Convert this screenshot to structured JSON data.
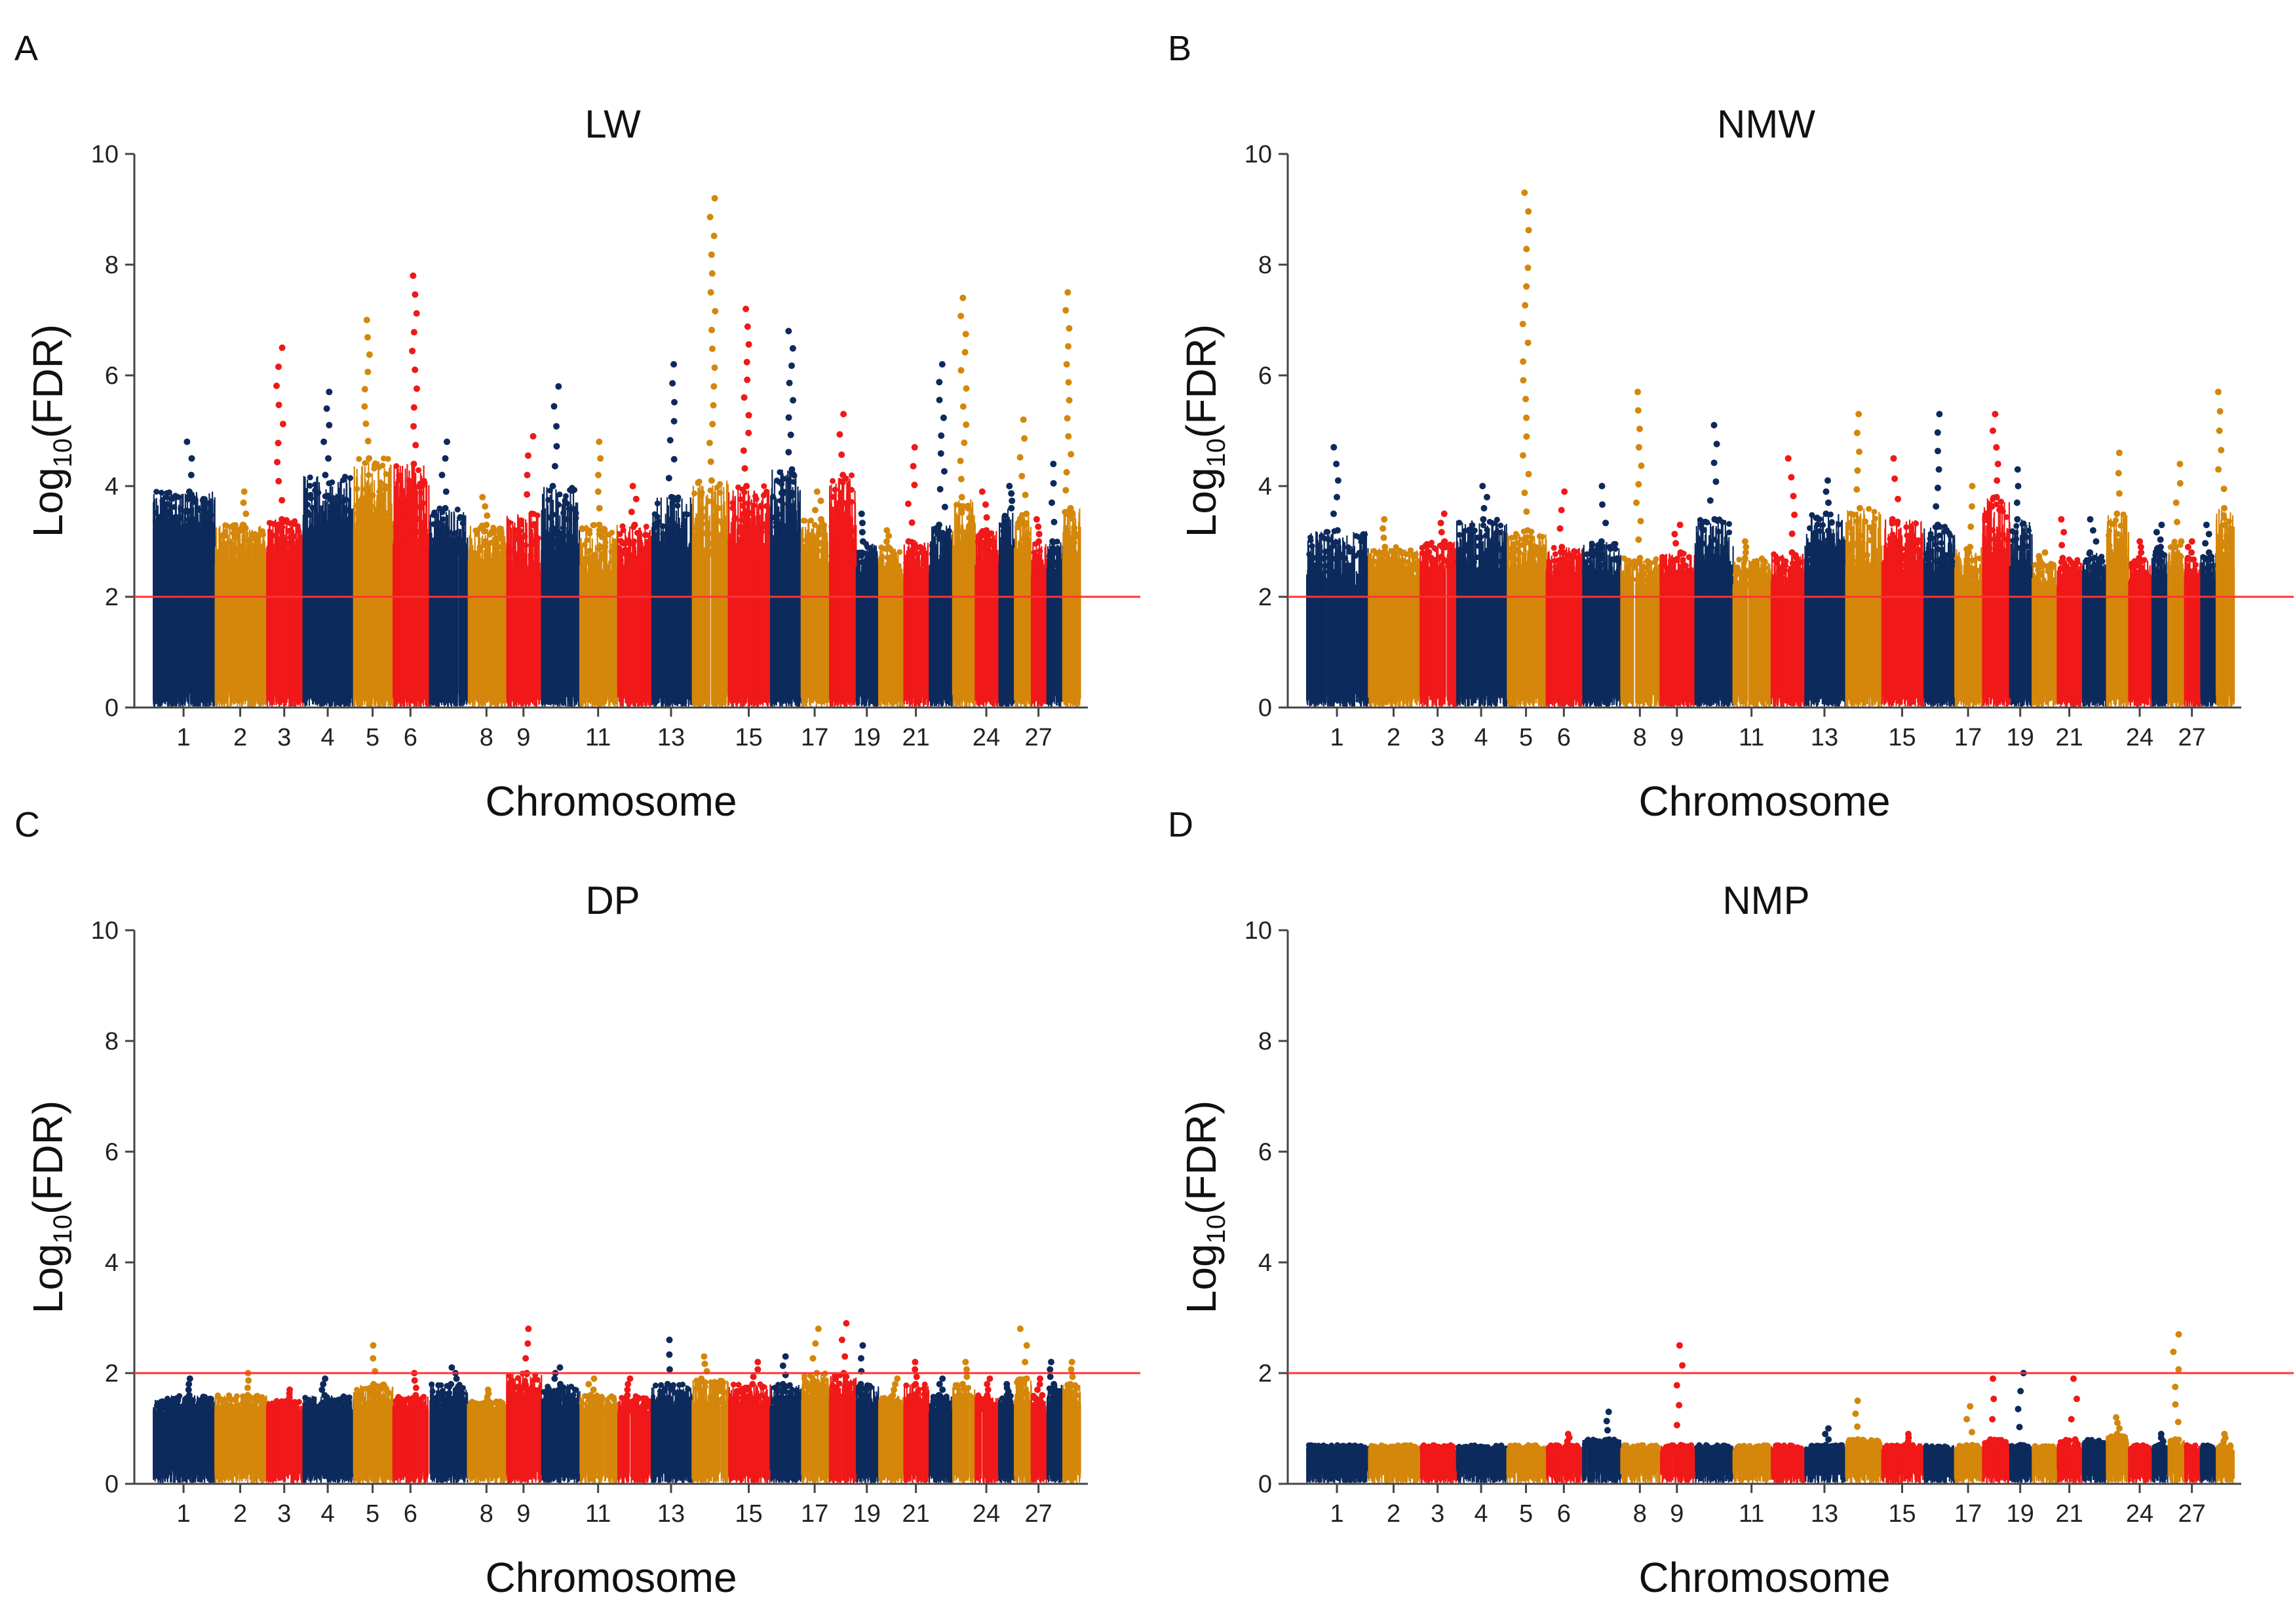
{
  "figure": {
    "description_colors": {
      "navy": "#0d2a5c",
      "gold": "#d4870a",
      "red": "#f01818",
      "threshold": "#ff3333",
      "axis": "#444444"
    }
  },
  "chart_data": [
    {
      "panel_letter": "A",
      "type": "scatter",
      "subtype": "manhattan",
      "title": "LW",
      "xlabel": "Chromosome",
      "ylabel": "Log10(FDR)",
      "ylabel_parts": {
        "main": "Log",
        "sub": "10",
        "rest": "(FDR)"
      },
      "ylim": [
        0,
        10
      ],
      "yticks": [
        0,
        2,
        4,
        6,
        8,
        10
      ],
      "threshold": 2,
      "chromosome_ticks": [
        "1",
        "2",
        "3",
        "4",
        "5",
        "6",
        "8",
        "9",
        "11",
        "13",
        "15",
        "17",
        "19",
        "21",
        "24",
        "27"
      ],
      "segments": [
        {
          "chrom": 1,
          "color": "navy",
          "base": 3.1,
          "top": 3.9,
          "peak": 4.8
        },
        {
          "chrom": 2,
          "color": "gold",
          "base": 2.6,
          "top": 3.3,
          "peak": 3.9
        },
        {
          "chrom": 3,
          "color": "red",
          "base": 2.8,
          "top": 3.4,
          "peak": 6.5
        },
        {
          "chrom": 4,
          "color": "navy",
          "base": 3.0,
          "top": 4.2,
          "peak": 5.7
        },
        {
          "chrom": 5,
          "color": "gold",
          "base": 3.2,
          "top": 4.5,
          "peak": 7.0
        },
        {
          "chrom": 6,
          "color": "red",
          "base": 2.8,
          "top": 4.4,
          "peak": 7.8
        },
        {
          "chrom": 7,
          "color": "navy",
          "base": 2.7,
          "top": 3.6,
          "peak": 4.8
        },
        {
          "chrom": 8,
          "color": "gold",
          "base": 2.5,
          "top": 3.3,
          "peak": 3.8
        },
        {
          "chrom": 9,
          "color": "red",
          "base": 2.4,
          "top": 3.5,
          "peak": 4.9
        },
        {
          "chrom": 10,
          "color": "navy",
          "base": 2.6,
          "top": 4.0,
          "peak": 5.8
        },
        {
          "chrom": 11,
          "color": "gold",
          "base": 2.4,
          "top": 3.3,
          "peak": 4.8
        },
        {
          "chrom": 12,
          "color": "red",
          "base": 2.5,
          "top": 3.3,
          "peak": 4.0
        },
        {
          "chrom": 13,
          "color": "navy",
          "base": 2.7,
          "top": 3.8,
          "peak": 6.2
        },
        {
          "chrom": 14,
          "color": "gold",
          "base": 2.7,
          "top": 4.1,
          "peak": 9.2
        },
        {
          "chrom": 15,
          "color": "red",
          "base": 2.7,
          "top": 4.0,
          "peak": 7.2
        },
        {
          "chrom": 16,
          "color": "navy",
          "base": 2.9,
          "top": 4.3,
          "peak": 6.8
        },
        {
          "chrom": 17,
          "color": "gold",
          "base": 2.6,
          "top": 3.4,
          "peak": 3.9
        },
        {
          "chrom": 18,
          "color": "red",
          "base": 2.9,
          "top": 4.2,
          "peak": 5.3
        },
        {
          "chrom": 19,
          "color": "navy",
          "base": 2.4,
          "top": 3.0,
          "peak": 3.5
        },
        {
          "chrom": 20,
          "color": "gold",
          "base": 2.3,
          "top": 2.9,
          "peak": 3.2
        },
        {
          "chrom": 21,
          "color": "red",
          "base": 2.4,
          "top": 3.0,
          "peak": 4.7
        },
        {
          "chrom": 22,
          "color": "navy",
          "base": 2.5,
          "top": 3.3,
          "peak": 6.2
        },
        {
          "chrom": 23,
          "color": "gold",
          "base": 2.6,
          "top": 3.8,
          "peak": 7.4
        },
        {
          "chrom": 24,
          "color": "red",
          "base": 2.5,
          "top": 3.2,
          "peak": 3.9
        },
        {
          "chrom": 25,
          "color": "navy",
          "base": 2.6,
          "top": 3.6,
          "peak": 4.0
        },
        {
          "chrom": 26,
          "color": "gold",
          "base": 2.6,
          "top": 3.5,
          "peak": 5.2
        },
        {
          "chrom": 27,
          "color": "red",
          "base": 2.4,
          "top": 3.0,
          "peak": 3.4
        },
        {
          "chrom": 28,
          "color": "navy",
          "base": 2.4,
          "top": 3.0,
          "peak": 4.4
        },
        {
          "chrom": 29,
          "color": "gold",
          "base": 2.7,
          "top": 3.6,
          "peak": 7.5
        }
      ]
    },
    {
      "panel_letter": "B",
      "type": "scatter",
      "subtype": "manhattan",
      "title": "NMW",
      "xlabel": "Chromosome",
      "ylabel": "Log10(FDR)",
      "ylabel_parts": {
        "main": "Log",
        "sub": "10",
        "rest": "(FDR)"
      },
      "ylim": [
        0,
        10
      ],
      "yticks": [
        0,
        2,
        4,
        6,
        8,
        10
      ],
      "threshold": 2,
      "chromosome_ticks": [
        "1",
        "2",
        "3",
        "4",
        "5",
        "6",
        "8",
        "9",
        "11",
        "13",
        "15",
        "17",
        "19",
        "21",
        "24",
        "27"
      ],
      "segments": [
        {
          "chrom": 1,
          "color": "navy",
          "base": 2.2,
          "top": 3.2,
          "peak": 4.7
        },
        {
          "chrom": 2,
          "color": "gold",
          "base": 2.3,
          "top": 2.9,
          "peak": 3.4
        },
        {
          "chrom": 3,
          "color": "red",
          "base": 2.5,
          "top": 3.0,
          "peak": 3.5
        },
        {
          "chrom": 4,
          "color": "navy",
          "base": 2.5,
          "top": 3.4,
          "peak": 4.0
        },
        {
          "chrom": 5,
          "color": "gold",
          "base": 2.4,
          "top": 3.2,
          "peak": 9.3
        },
        {
          "chrom": 6,
          "color": "red",
          "base": 2.3,
          "top": 2.9,
          "peak": 3.9
        },
        {
          "chrom": 7,
          "color": "navy",
          "base": 2.3,
          "top": 3.0,
          "peak": 4.0
        },
        {
          "chrom": 8,
          "color": "gold",
          "base": 2.2,
          "top": 2.7,
          "peak": 5.7
        },
        {
          "chrom": 9,
          "color": "red",
          "base": 2.3,
          "top": 2.8,
          "peak": 3.3
        },
        {
          "chrom": 10,
          "color": "navy",
          "base": 2.4,
          "top": 3.4,
          "peak": 5.1
        },
        {
          "chrom": 11,
          "color": "gold",
          "base": 2.2,
          "top": 2.7,
          "peak": 3.0
        },
        {
          "chrom": 12,
          "color": "red",
          "base": 2.2,
          "top": 2.8,
          "peak": 4.5
        },
        {
          "chrom": 13,
          "color": "navy",
          "base": 2.4,
          "top": 3.5,
          "peak": 4.1
        },
        {
          "chrom": 14,
          "color": "gold",
          "base": 2.4,
          "top": 3.6,
          "peak": 5.3
        },
        {
          "chrom": 15,
          "color": "red",
          "base": 2.5,
          "top": 3.4,
          "peak": 4.5
        },
        {
          "chrom": 16,
          "color": "navy",
          "base": 2.4,
          "top": 3.3,
          "peak": 5.3
        },
        {
          "chrom": 17,
          "color": "gold",
          "base": 2.2,
          "top": 2.9,
          "peak": 4.0
        },
        {
          "chrom": 18,
          "color": "red",
          "base": 2.6,
          "top": 3.8,
          "peak": 5.3
        },
        {
          "chrom": 19,
          "color": "navy",
          "base": 2.4,
          "top": 3.4,
          "peak": 4.3
        },
        {
          "chrom": 20,
          "color": "gold",
          "base": 2.1,
          "top": 2.6,
          "peak": 2.8
        },
        {
          "chrom": 21,
          "color": "red",
          "base": 2.2,
          "top": 2.7,
          "peak": 3.4
        },
        {
          "chrom": 22,
          "color": "navy",
          "base": 2.2,
          "top": 2.8,
          "peak": 3.4
        },
        {
          "chrom": 23,
          "color": "gold",
          "base": 2.4,
          "top": 3.5,
          "peak": 4.6
        },
        {
          "chrom": 24,
          "color": "red",
          "base": 2.2,
          "top": 2.7,
          "peak": 3.0
        },
        {
          "chrom": 25,
          "color": "navy",
          "base": 2.3,
          "top": 2.9,
          "peak": 3.3
        },
        {
          "chrom": 26,
          "color": "gold",
          "base": 2.3,
          "top": 3.0,
          "peak": 4.4
        },
        {
          "chrom": 27,
          "color": "red",
          "base": 2.2,
          "top": 2.7,
          "peak": 3.0
        },
        {
          "chrom": 28,
          "color": "navy",
          "base": 2.2,
          "top": 2.8,
          "peak": 3.3
        },
        {
          "chrom": 29,
          "color": "gold",
          "base": 2.5,
          "top": 3.6,
          "peak": 5.7
        }
      ]
    },
    {
      "panel_letter": "C",
      "type": "scatter",
      "subtype": "manhattan",
      "title": "DP",
      "xlabel": "Chromosome",
      "ylabel": "Log10(FDR)",
      "ylabel_parts": {
        "main": "Log",
        "sub": "10",
        "rest": "(FDR)"
      },
      "ylim": [
        0,
        10
      ],
      "yticks": [
        0,
        2,
        4,
        6,
        8,
        10
      ],
      "threshold": 2,
      "chromosome_ticks": [
        "1",
        "2",
        "3",
        "4",
        "5",
        "6",
        "8",
        "9",
        "11",
        "13",
        "15",
        "17",
        "19",
        "21",
        "24",
        "27"
      ],
      "segments": [
        {
          "chrom": 1,
          "color": "navy",
          "base": 1.3,
          "top": 1.6,
          "peak": 1.9
        },
        {
          "chrom": 2,
          "color": "gold",
          "base": 1.3,
          "top": 1.6,
          "peak": 2.0
        },
        {
          "chrom": 3,
          "color": "red",
          "base": 1.3,
          "top": 1.5,
          "peak": 1.7
        },
        {
          "chrom": 4,
          "color": "navy",
          "base": 1.3,
          "top": 1.6,
          "peak": 1.9
        },
        {
          "chrom": 5,
          "color": "gold",
          "base": 1.4,
          "top": 1.8,
          "peak": 2.5
        },
        {
          "chrom": 6,
          "color": "red",
          "base": 1.3,
          "top": 1.6,
          "peak": 2.0
        },
        {
          "chrom": 7,
          "color": "navy",
          "base": 1.4,
          "top": 1.8,
          "peak": 2.1
        },
        {
          "chrom": 8,
          "color": "gold",
          "base": 1.3,
          "top": 1.5,
          "peak": 1.7
        },
        {
          "chrom": 9,
          "color": "red",
          "base": 1.5,
          "top": 2.0,
          "peak": 2.8
        },
        {
          "chrom": 10,
          "color": "navy",
          "base": 1.4,
          "top": 1.8,
          "peak": 2.1
        },
        {
          "chrom": 11,
          "color": "gold",
          "base": 1.3,
          "top": 1.6,
          "peak": 1.9
        },
        {
          "chrom": 12,
          "color": "red",
          "base": 1.3,
          "top": 1.6,
          "peak": 1.9
        },
        {
          "chrom": 13,
          "color": "navy",
          "base": 1.4,
          "top": 1.8,
          "peak": 2.6
        },
        {
          "chrom": 14,
          "color": "gold",
          "base": 1.4,
          "top": 1.9,
          "peak": 2.3
        },
        {
          "chrom": 15,
          "color": "red",
          "base": 1.4,
          "top": 1.8,
          "peak": 2.2
        },
        {
          "chrom": 16,
          "color": "navy",
          "base": 1.4,
          "top": 1.8,
          "peak": 2.3
        },
        {
          "chrom": 17,
          "color": "gold",
          "base": 1.5,
          "top": 2.0,
          "peak": 2.8
        },
        {
          "chrom": 18,
          "color": "red",
          "base": 1.5,
          "top": 2.0,
          "peak": 2.9
        },
        {
          "chrom": 19,
          "color": "navy",
          "base": 1.4,
          "top": 1.8,
          "peak": 2.5
        },
        {
          "chrom": 20,
          "color": "gold",
          "base": 1.3,
          "top": 1.6,
          "peak": 1.9
        },
        {
          "chrom": 21,
          "color": "red",
          "base": 1.4,
          "top": 1.8,
          "peak": 2.2
        },
        {
          "chrom": 22,
          "color": "navy",
          "base": 1.3,
          "top": 1.6,
          "peak": 1.9
        },
        {
          "chrom": 23,
          "color": "gold",
          "base": 1.4,
          "top": 1.8,
          "peak": 2.2
        },
        {
          "chrom": 24,
          "color": "red",
          "base": 1.3,
          "top": 1.6,
          "peak": 1.9
        },
        {
          "chrom": 25,
          "color": "navy",
          "base": 1.3,
          "top": 1.6,
          "peak": 1.8
        },
        {
          "chrom": 26,
          "color": "gold",
          "base": 1.5,
          "top": 1.9,
          "peak": 2.8
        },
        {
          "chrom": 27,
          "color": "red",
          "base": 1.3,
          "top": 1.6,
          "peak": 1.9
        },
        {
          "chrom": 28,
          "color": "navy",
          "base": 1.4,
          "top": 1.8,
          "peak": 2.2
        },
        {
          "chrom": 29,
          "color": "gold",
          "base": 1.4,
          "top": 1.8,
          "peak": 2.2
        }
      ]
    },
    {
      "panel_letter": "D",
      "type": "scatter",
      "subtype": "manhattan",
      "title": "NMP",
      "xlabel": "Chromosome",
      "ylabel": "Log10(FDR)",
      "ylabel_parts": {
        "main": "Log",
        "sub": "10",
        "rest": "(FDR)"
      },
      "ylim": [
        0,
        10
      ],
      "yticks": [
        0,
        2,
        4,
        6,
        8,
        10
      ],
      "threshold": 2,
      "chromosome_ticks": [
        "1",
        "2",
        "3",
        "4",
        "5",
        "6",
        "8",
        "9",
        "11",
        "13",
        "15",
        "17",
        "19",
        "21",
        "24",
        "27"
      ],
      "segments": [
        {
          "chrom": 1,
          "color": "navy",
          "base": 0.6,
          "top": 0.7,
          "peak": 0.8
        },
        {
          "chrom": 2,
          "color": "gold",
          "base": 0.6,
          "top": 0.7,
          "peak": 0.7
        },
        {
          "chrom": 3,
          "color": "red",
          "base": 0.6,
          "top": 0.7,
          "peak": 0.7
        },
        {
          "chrom": 4,
          "color": "navy",
          "base": 0.6,
          "top": 0.7,
          "peak": 0.8
        },
        {
          "chrom": 5,
          "color": "gold",
          "base": 0.6,
          "top": 0.7,
          "peak": 0.7
        },
        {
          "chrom": 6,
          "color": "red",
          "base": 0.6,
          "top": 0.7,
          "peak": 0.9
        },
        {
          "chrom": 7,
          "color": "navy",
          "base": 0.7,
          "top": 0.8,
          "peak": 1.3
        },
        {
          "chrom": 8,
          "color": "gold",
          "base": 0.6,
          "top": 0.7,
          "peak": 0.8
        },
        {
          "chrom": 9,
          "color": "red",
          "base": 0.6,
          "top": 0.7,
          "peak": 2.5
        },
        {
          "chrom": 10,
          "color": "navy",
          "base": 0.6,
          "top": 0.7,
          "peak": 0.8
        },
        {
          "chrom": 11,
          "color": "gold",
          "base": 0.6,
          "top": 0.7,
          "peak": 0.7
        },
        {
          "chrom": 12,
          "color": "red",
          "base": 0.6,
          "top": 0.7,
          "peak": 0.7
        },
        {
          "chrom": 13,
          "color": "navy",
          "base": 0.6,
          "top": 0.7,
          "peak": 1.0
        },
        {
          "chrom": 14,
          "color": "gold",
          "base": 0.7,
          "top": 0.8,
          "peak": 1.5
        },
        {
          "chrom": 15,
          "color": "red",
          "base": 0.6,
          "top": 0.7,
          "peak": 0.9
        },
        {
          "chrom": 16,
          "color": "navy",
          "base": 0.6,
          "top": 0.7,
          "peak": 0.8
        },
        {
          "chrom": 17,
          "color": "gold",
          "base": 0.6,
          "top": 0.7,
          "peak": 1.4
        },
        {
          "chrom": 18,
          "color": "red",
          "base": 0.7,
          "top": 0.8,
          "peak": 1.9
        },
        {
          "chrom": 19,
          "color": "navy",
          "base": 0.6,
          "top": 0.7,
          "peak": 2.0
        },
        {
          "chrom": 20,
          "color": "gold",
          "base": 0.6,
          "top": 0.7,
          "peak": 0.7
        },
        {
          "chrom": 21,
          "color": "red",
          "base": 0.6,
          "top": 0.8,
          "peak": 1.9
        },
        {
          "chrom": 22,
          "color": "navy",
          "base": 0.7,
          "top": 0.8,
          "peak": 0.9
        },
        {
          "chrom": 23,
          "color": "gold",
          "base": 0.7,
          "top": 0.9,
          "peak": 1.2
        },
        {
          "chrom": 24,
          "color": "red",
          "base": 0.6,
          "top": 0.7,
          "peak": 0.8
        },
        {
          "chrom": 25,
          "color": "navy",
          "base": 0.6,
          "top": 0.7,
          "peak": 0.9
        },
        {
          "chrom": 26,
          "color": "gold",
          "base": 0.7,
          "top": 0.8,
          "peak": 2.7
        },
        {
          "chrom": 27,
          "color": "red",
          "base": 0.6,
          "top": 0.7,
          "peak": 0.8
        },
        {
          "chrom": 28,
          "color": "navy",
          "base": 0.6,
          "top": 0.7,
          "peak": 0.8
        },
        {
          "chrom": 29,
          "color": "gold",
          "base": 0.6,
          "top": 0.7,
          "peak": 0.9
        }
      ]
    }
  ]
}
